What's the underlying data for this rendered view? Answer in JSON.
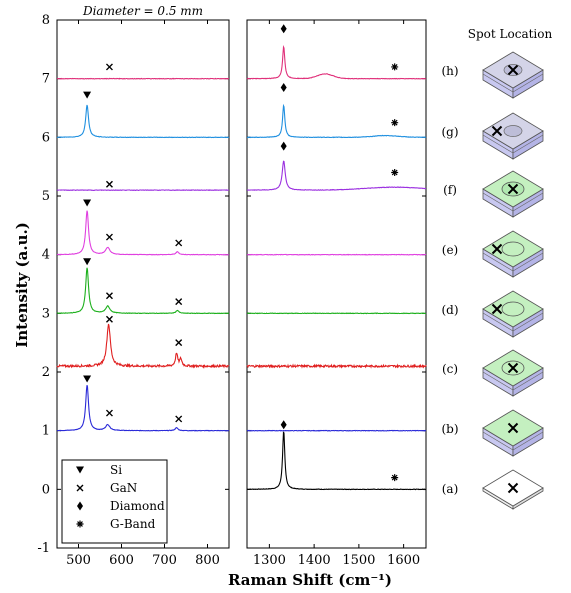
{
  "figure": {
    "header": "Diameter = 0.5 mm",
    "spot_title": "Spot Location"
  },
  "chart_data": {
    "type": "line",
    "ylabel": "Intensity (a.u.)",
    "xlabel": "Raman Shift (cm⁻¹)",
    "ylim": [
      -1,
      8
    ],
    "yticks": [
      "-1",
      "0",
      "1",
      "2",
      "3",
      "4",
      "5",
      "6",
      "7",
      "8"
    ],
    "panels": [
      {
        "name": "left",
        "xlim": [
          450,
          850
        ],
        "xticks": [
          "500",
          "600",
          "700",
          "800"
        ]
      },
      {
        "name": "right",
        "xlim": [
          1250,
          1650
        ],
        "xticks": [
          "1300",
          "1400",
          "1500",
          "1600"
        ]
      }
    ],
    "legend": {
      "position": "bottom-left",
      "entries": [
        {
          "marker": "triangle",
          "label": "Si"
        },
        {
          "marker": "x",
          "label": "GaN"
        },
        {
          "marker": "diamond",
          "label": "Diamond"
        },
        {
          "marker": "asterisk",
          "label": "G-Band"
        }
      ]
    },
    "series": [
      {
        "label": "(a)",
        "color": "#000000",
        "offset": 0,
        "left": {
          "present": false
        },
        "right": {
          "peaks": [
            {
              "x": 1332,
              "h": 1.0,
              "w": 3
            }
          ]
        }
      },
      {
        "label": "(b)",
        "color": "#2a2ad8",
        "offset": 1,
        "left": {
          "peaks": [
            {
              "x": 520,
              "h": 0.78,
              "w": 4
            },
            {
              "x": 568,
              "h": 0.1,
              "w": 6
            },
            {
              "x": 728,
              "h": 0.05,
              "w": 4
            }
          ]
        },
        "right": {
          "peaks": []
        }
      },
      {
        "label": "(c)",
        "color": "#e02020",
        "offset": 2.1,
        "left": {
          "peaks": [
            {
              "x": 570,
              "h": 0.72,
              "w": 5
            },
            {
              "x": 728,
              "h": 0.22,
              "w": 3
            },
            {
              "x": 738,
              "h": 0.12,
              "w": 3
            }
          ]
        },
        "right": {
          "peaks": []
        }
      },
      {
        "label": "(d)",
        "color": "#1cb01c",
        "offset": 3,
        "left": {
          "peaks": [
            {
              "x": 520,
              "h": 0.78,
              "w": 4
            },
            {
              "x": 568,
              "h": 0.12,
              "w": 6
            },
            {
              "x": 730,
              "h": 0.05,
              "w": 4
            }
          ]
        },
        "right": {
          "peaks": []
        }
      },
      {
        "label": "(e)",
        "color": "#e040e0",
        "offset": 4,
        "left": {
          "peaks": [
            {
              "x": 520,
              "h": 0.75,
              "w": 4
            },
            {
              "x": 568,
              "h": 0.12,
              "w": 6
            },
            {
              "x": 730,
              "h": 0.05,
              "w": 4
            }
          ]
        },
        "right": {
          "peaks": []
        }
      },
      {
        "label": "(f)",
        "color": "#9b30e0",
        "offset": 5.1,
        "left": {
          "peaks": []
        },
        "right": {
          "peaks": [
            {
              "x": 1332,
              "h": 0.5,
              "w": 4
            }
          ],
          "bands": [
            {
              "x": 1580,
              "h": 0.05,
              "w": 90
            }
          ]
        }
      },
      {
        "label": "(g)",
        "color": "#2090e0",
        "offset": 6,
        "left": {
          "peaks": [
            {
              "x": 520,
              "h": 0.55,
              "w": 4
            }
          ]
        },
        "right": {
          "peaks": [
            {
              "x": 1332,
              "h": 0.55,
              "w": 3
            }
          ],
          "bands": [
            {
              "x": 1560,
              "h": 0.03,
              "w": 40
            }
          ]
        }
      },
      {
        "label": "(h)",
        "color": "#e0307a",
        "offset": 7,
        "left": {
          "peaks": []
        },
        "right": {
          "peaks": [
            {
              "x": 1332,
              "h": 0.55,
              "w": 3
            }
          ],
          "bands": [
            {
              "x": 1425,
              "h": 0.08,
              "w": 25
            }
          ]
        }
      }
    ],
    "markers": [
      {
        "panel": "left",
        "x": 572,
        "y": 7.2,
        "type": "x"
      },
      {
        "panel": "left",
        "x": 520,
        "y": 6.72,
        "type": "triangle"
      },
      {
        "panel": "left",
        "x": 572,
        "y": 5.2,
        "type": "x"
      },
      {
        "panel": "left",
        "x": 520,
        "y": 4.88,
        "type": "triangle"
      },
      {
        "panel": "left",
        "x": 572,
        "y": 4.3,
        "type": "x"
      },
      {
        "panel": "left",
        "x": 733,
        "y": 4.2,
        "type": "x"
      },
      {
        "panel": "left",
        "x": 520,
        "y": 3.88,
        "type": "triangle"
      },
      {
        "panel": "left",
        "x": 572,
        "y": 3.3,
        "type": "x"
      },
      {
        "panel": "left",
        "x": 733,
        "y": 3.2,
        "type": "x"
      },
      {
        "panel": "left",
        "x": 572,
        "y": 2.9,
        "type": "x"
      },
      {
        "panel": "left",
        "x": 733,
        "y": 2.5,
        "type": "x"
      },
      {
        "panel": "left",
        "x": 520,
        "y": 1.88,
        "type": "triangle"
      },
      {
        "panel": "left",
        "x": 572,
        "y": 1.3,
        "type": "x"
      },
      {
        "panel": "left",
        "x": 733,
        "y": 1.2,
        "type": "x"
      },
      {
        "panel": "right",
        "x": 1332,
        "y": 7.85,
        "type": "diamond"
      },
      {
        "panel": "right",
        "x": 1580,
        "y": 7.2,
        "type": "asterisk"
      },
      {
        "panel": "right",
        "x": 1332,
        "y": 6.85,
        "type": "diamond"
      },
      {
        "panel": "right",
        "x": 1580,
        "y": 6.25,
        "type": "asterisk"
      },
      {
        "panel": "right",
        "x": 1332,
        "y": 5.85,
        "type": "diamond"
      },
      {
        "panel": "right",
        "x": 1580,
        "y": 5.4,
        "type": "asterisk"
      },
      {
        "panel": "right",
        "x": 1332,
        "y": 1.1,
        "type": "diamond"
      },
      {
        "panel": "right",
        "x": 1580,
        "y": 0.2,
        "type": "asterisk"
      }
    ]
  },
  "spots": [
    {
      "label": "(h)",
      "style": "diamond-window",
      "cross": "center"
    },
    {
      "label": "(g)",
      "style": "diamond-window",
      "cross": "left"
    },
    {
      "label": "(f)",
      "style": "gan-window",
      "cross": "center"
    },
    {
      "label": "(e)",
      "style": "gan-ring",
      "cross": "left"
    },
    {
      "label": "(d)",
      "style": "gan-ring",
      "cross": "left"
    },
    {
      "label": "(c)",
      "style": "gan-ring",
      "cross": "center"
    },
    {
      "label": "(b)",
      "style": "gan-plain",
      "cross": "center"
    },
    {
      "label": "(a)",
      "style": "white",
      "cross": "center"
    }
  ]
}
